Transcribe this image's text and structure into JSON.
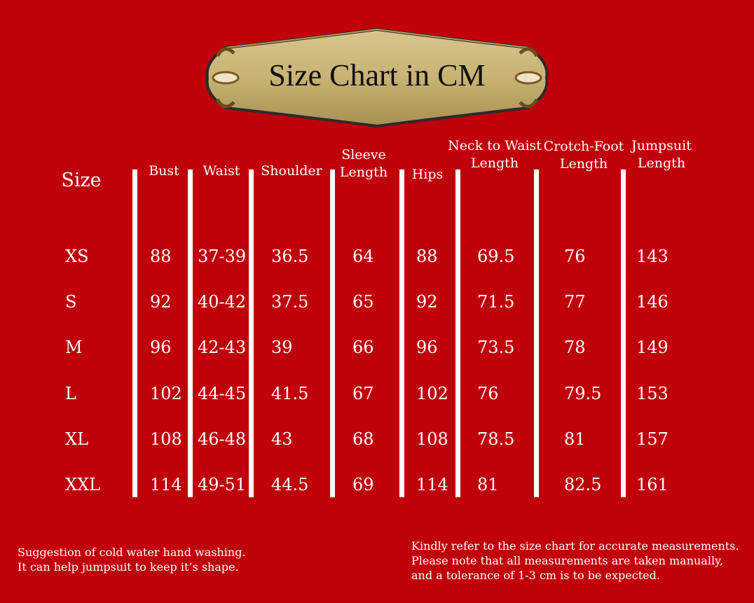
{
  "title": "Size Chart in CM",
  "table": {
    "columns": [
      "Size",
      "Bust",
      "Waist",
      "Shoulder",
      "Sleeve Length",
      "Hips",
      "Neck to Waist Length",
      "Crotch-Foot Length",
      "Jumpsuit Length"
    ],
    "headers": [
      {
        "lines": [
          "Size"
        ]
      },
      {
        "lines": [
          "Bust"
        ]
      },
      {
        "lines": [
          "Waist"
        ]
      },
      {
        "lines": [
          "Shoulder"
        ]
      },
      {
        "lines": [
          "Sleeve",
          "Length"
        ]
      },
      {
        "lines": [
          "Hips"
        ]
      },
      {
        "lines": [
          "Neck to Waist",
          "Length"
        ]
      },
      {
        "lines": [
          "Crotch-Foot",
          "Length"
        ]
      },
      {
        "lines": [
          "Jumpsuit",
          "Length"
        ]
      }
    ],
    "rows": [
      [
        "XS",
        "88",
        "37-39",
        "36.5",
        "64",
        "88",
        "69.5",
        "76",
        "143"
      ],
      [
        "S",
        "92",
        "40-42",
        "37.5",
        "65",
        "92",
        "71.5",
        "77",
        "146"
      ],
      [
        "M",
        "96",
        "42-43",
        "39",
        "66",
        "96",
        "73.5",
        "78",
        "149"
      ],
      [
        "L",
        "102",
        "44-45",
        "41.5",
        "67",
        "102",
        "76",
        "79.5",
        "153"
      ],
      [
        "XL",
        "108",
        "46-48",
        "43",
        "68",
        "108",
        "78.5",
        "81",
        "157"
      ],
      [
        "XXL",
        "114",
        "49-51",
        "44.5",
        "69",
        "114",
        "81",
        "82.5",
        "161"
      ]
    ]
  },
  "notes": {
    "left": [
      "Suggestion of cold water hand washing.",
      "It can help jumpsuit to keep it’s shape."
    ],
    "right": [
      "Kindly refer to the size chart for accurate measurements.",
      "Please note that all measurements are taken manually,",
      "and a tolerance of 1-3 cm is to be expected."
    ]
  },
  "colors": {
    "background": "#c0000b",
    "plaque": "#c9b57a",
    "text": "#ffffff"
  }
}
